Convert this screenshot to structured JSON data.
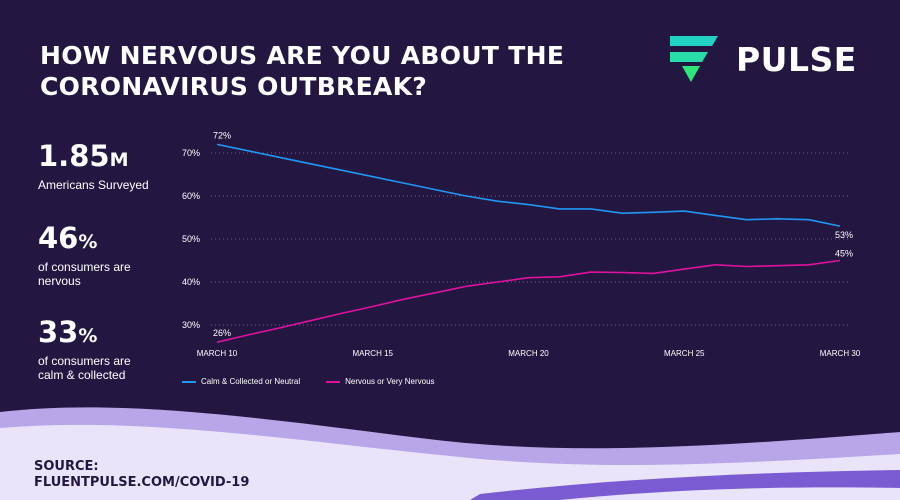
{
  "header": {
    "title": "HOW NERVOUS ARE YOU ABOUT THE CORONAVIRUS OUTBREAK?",
    "brand": "PULSE"
  },
  "stats": [
    {
      "number": "1.85",
      "unit": "M",
      "desc": "Americans Surveyed"
    },
    {
      "number": "46",
      "unit": "%",
      "desc": "of consumers are nervous"
    },
    {
      "number": "33",
      "unit": "%",
      "desc": "of consumers  are calm & collected"
    }
  ],
  "source": {
    "label": "SOURCE:",
    "url": "FLUENTPULSE.COM/COVID-19"
  },
  "colors": {
    "background": "#231742",
    "calm": "#2196f3",
    "nervous": "#e0119d",
    "wave_light": "#eae4fa",
    "wave_mid": "#b8a6e8",
    "wave_dark": "#7b5bd1",
    "logo_teal": "#22d3c5",
    "logo_green": "#2ee57a"
  },
  "chart_data": {
    "type": "line",
    "x": [
      "March 10",
      "March 11",
      "March 12",
      "March 13",
      "March 14",
      "March 15",
      "March 16",
      "March 17",
      "March 18",
      "March 19",
      "March 20",
      "March 21",
      "March 22",
      "March 23",
      "March 24",
      "March 25",
      "March 26",
      "March 27",
      "March 28",
      "March 29",
      "March 30"
    ],
    "x_tick_labels": [
      "MARCH 10",
      "MARCH 15",
      "MARCH 20",
      "MARCH 25",
      "MARCH 30"
    ],
    "y_tick_labels": [
      "30%",
      "40%",
      "50%",
      "60%",
      "70%"
    ],
    "ylim": [
      28,
      74
    ],
    "grid": true,
    "series": [
      {
        "name": "Calm & Collected or Neutral",
        "color": "#2196f3",
        "values": [
          72,
          70.5,
          69,
          67.5,
          66,
          64.5,
          63,
          61.5,
          60,
          58.8,
          58,
          57,
          57,
          56,
          56.2,
          56.5,
          55.5,
          54.5,
          54.7,
          54.5,
          53
        ],
        "start_label": "72%",
        "end_label": "53%"
      },
      {
        "name": "Nervous or Very Nervous",
        "color": "#e0119d",
        "values": [
          26,
          27.7,
          29.3,
          31,
          32.7,
          34.3,
          36,
          37.5,
          39,
          40,
          41,
          41.2,
          42.3,
          42.2,
          42,
          43,
          44,
          43.6,
          43.8,
          44,
          45
        ],
        "start_label": "26%",
        "end_label": "45%"
      }
    ],
    "legend_position": "bottom-left"
  }
}
